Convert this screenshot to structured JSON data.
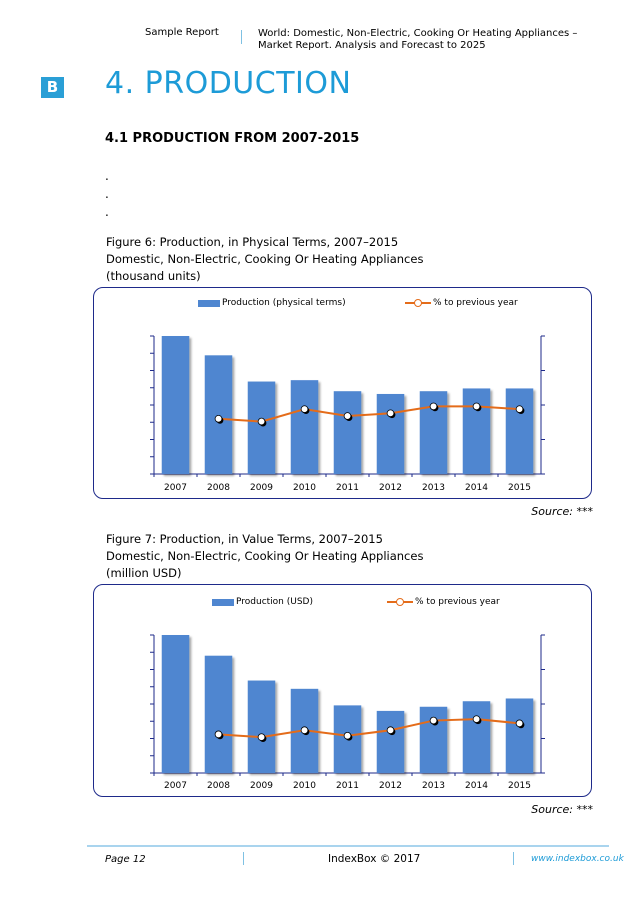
{
  "header": {
    "left": "Sample Report",
    "right": "World: Domestic, Non-Electric, Cooking Or Heating Appliances – Market Report. Analysis and Forecast to 2025"
  },
  "logo": {
    "letter": "B",
    "color": "#2a9fd6"
  },
  "section": {
    "title": "4. PRODUCTION",
    "subtitle": "4.1 PRODUCTION FROM 2007-2015",
    "dots": [
      ".",
      ".",
      "."
    ]
  },
  "figures": [
    {
      "caption": "Figure 6: Production, in Physical Terms, 2007–2015",
      "line2": "Domestic, Non-Electric, Cooking Or Heating Appliances",
      "line3": "(thousand units)",
      "source": "Source: ***"
    },
    {
      "caption": "Figure 7: Production, in Value Terms, 2007–2015",
      "line2": "Domestic, Non-Electric, Cooking Or Heating Appliances",
      "line3": "(million USD)",
      "source": "Source: ***"
    }
  ],
  "chart_data": [
    {
      "type": "bar",
      "categories": [
        "2007",
        "2008",
        "2009",
        "2010",
        "2011",
        "2012",
        "2013",
        "2014",
        "2015"
      ],
      "series": [
        {
          "name": "Production (physical terms)",
          "kind": "bar",
          "values": [
            100,
            86,
            67,
            68,
            60,
            58,
            60,
            62,
            62
          ]
        },
        {
          "name": "% to previous year",
          "kind": "line",
          "values": [
            null,
            40,
            38,
            47,
            42,
            44,
            49,
            49,
            47
          ]
        }
      ],
      "ylim": [
        0,
        100
      ],
      "y2lim": [
        0,
        100
      ],
      "tick_labels_shown": false,
      "grid": false,
      "legend": "top",
      "colors": {
        "bar": "#4f86d0",
        "line": "#e46c1a"
      }
    },
    {
      "type": "bar",
      "categories": [
        "2007",
        "2008",
        "2009",
        "2010",
        "2011",
        "2012",
        "2013",
        "2014",
        "2015"
      ],
      "series": [
        {
          "name": "Production (USD)",
          "kind": "bar",
          "values": [
            100,
            85,
            67,
            61,
            49,
            45,
            48,
            52,
            54
          ]
        },
        {
          "name": "% to previous year",
          "kind": "line",
          "values": [
            null,
            28,
            26,
            31,
            27,
            31,
            38,
            39,
            36
          ]
        }
      ],
      "ylim": [
        0,
        100
      ],
      "y2lim": [
        0,
        100
      ],
      "tick_labels_shown": false,
      "grid": false,
      "legend": "top",
      "colors": {
        "bar": "#4f86d0",
        "line": "#e46c1a"
      }
    }
  ],
  "footer": {
    "page": "Page 12",
    "center": "IndexBox © 2017",
    "url": "www.indexbox.co.uk"
  }
}
